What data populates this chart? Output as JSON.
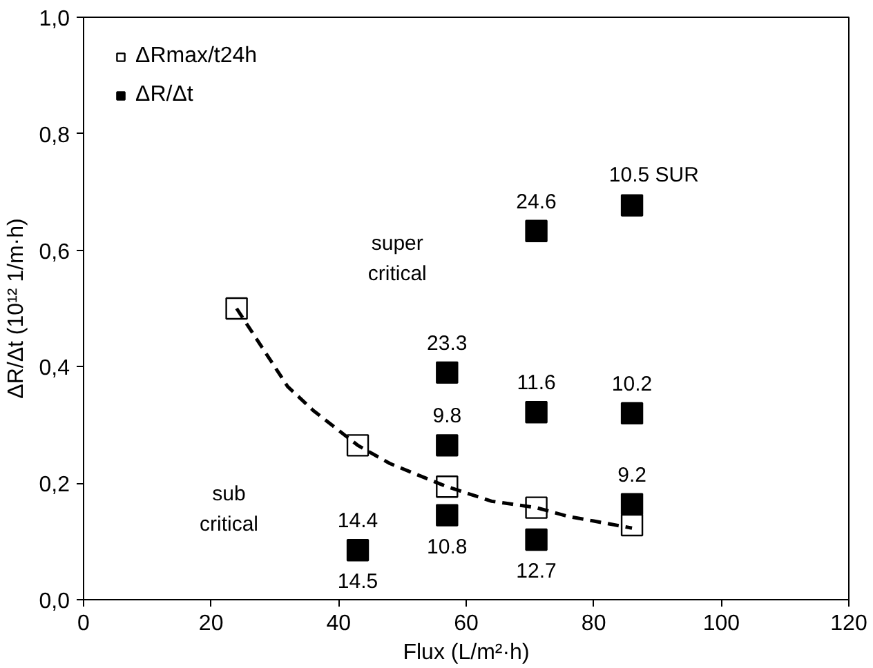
{
  "chart_data": {
    "type": "scatter",
    "xlabel": "Flux (L/m²·h)",
    "ylabel": "ΔR/Δt (10¹² 1/m·h)",
    "xlim": [
      0,
      120
    ],
    "xticks": [
      0,
      20,
      40,
      60,
      80,
      100,
      120
    ],
    "ylim": [
      0,
      1.0
    ],
    "yticks": [
      {
        "value": 0,
        "label": "0,0"
      },
      {
        "value": 0.2,
        "label": "0,2"
      },
      {
        "value": 0.4,
        "label": "0,4"
      },
      {
        "value": 0.6,
        "label": "0,6"
      },
      {
        "value": 0.8,
        "label": "0,8"
      },
      {
        "value": 1.0,
        "label": "1,0"
      }
    ],
    "grid": false,
    "legend": "top left",
    "series": [
      {
        "name": "ΔRmax/t24h",
        "color": "#ffffff",
        "marker": "square",
        "x": [
          24,
          43,
          57,
          71,
          86
        ],
        "values": [
          0.5,
          0.265,
          0.194,
          0.158,
          0.128
        ]
      },
      {
        "name": "ΔR/Δt",
        "color": "#000000",
        "marker": "square",
        "x": [
          43,
          57,
          57,
          57,
          71,
          71,
          71,
          86,
          86,
          86
        ],
        "values": [
          0.085,
          0.145,
          0.265,
          0.39,
          0.103,
          0.322,
          0.633,
          0.164,
          0.32,
          0.677
        ]
      },
      {
        "type": "line",
        "color": "#000000",
        "line_style": "dashed",
        "marker": "none",
        "x": [
          24,
          32,
          36,
          43,
          48,
          52,
          57,
          64,
          71,
          76,
          80,
          86
        ],
        "values": [
          0.5,
          0.366,
          0.325,
          0.265,
          0.234,
          0.216,
          0.194,
          0.169,
          0.158,
          0.143,
          0.135,
          0.123
        ]
      }
    ],
    "annotations": [
      "super\ncritical",
      "sub\ncritical",
      {
        "text": "10.5  SUR",
        "x": 86,
        "y": 0.677
      },
      {
        "text": "24.6",
        "x": 71,
        "y": 0.633
      },
      {
        "text": "23.3",
        "x": 57,
        "y": 0.39
      },
      {
        "text": "11.6",
        "x": 71,
        "y": 0.322
      },
      {
        "text": "10.2",
        "x": 86,
        "y": 0.32
      },
      {
        "text": "9.8",
        "x": 57,
        "y": 0.265
      },
      {
        "text": "9.2",
        "x": 86,
        "y": 0.164
      },
      {
        "text": "14.4",
        "x": 43,
        "y": 0.085
      },
      {
        "text": "10.8",
        "x": 57,
        "y": 0.145
      },
      {
        "text": "14.5",
        "x": 43,
        "y": 0.085
      },
      {
        "text": "12.7",
        "x": 71,
        "y": 0.103
      }
    ]
  }
}
